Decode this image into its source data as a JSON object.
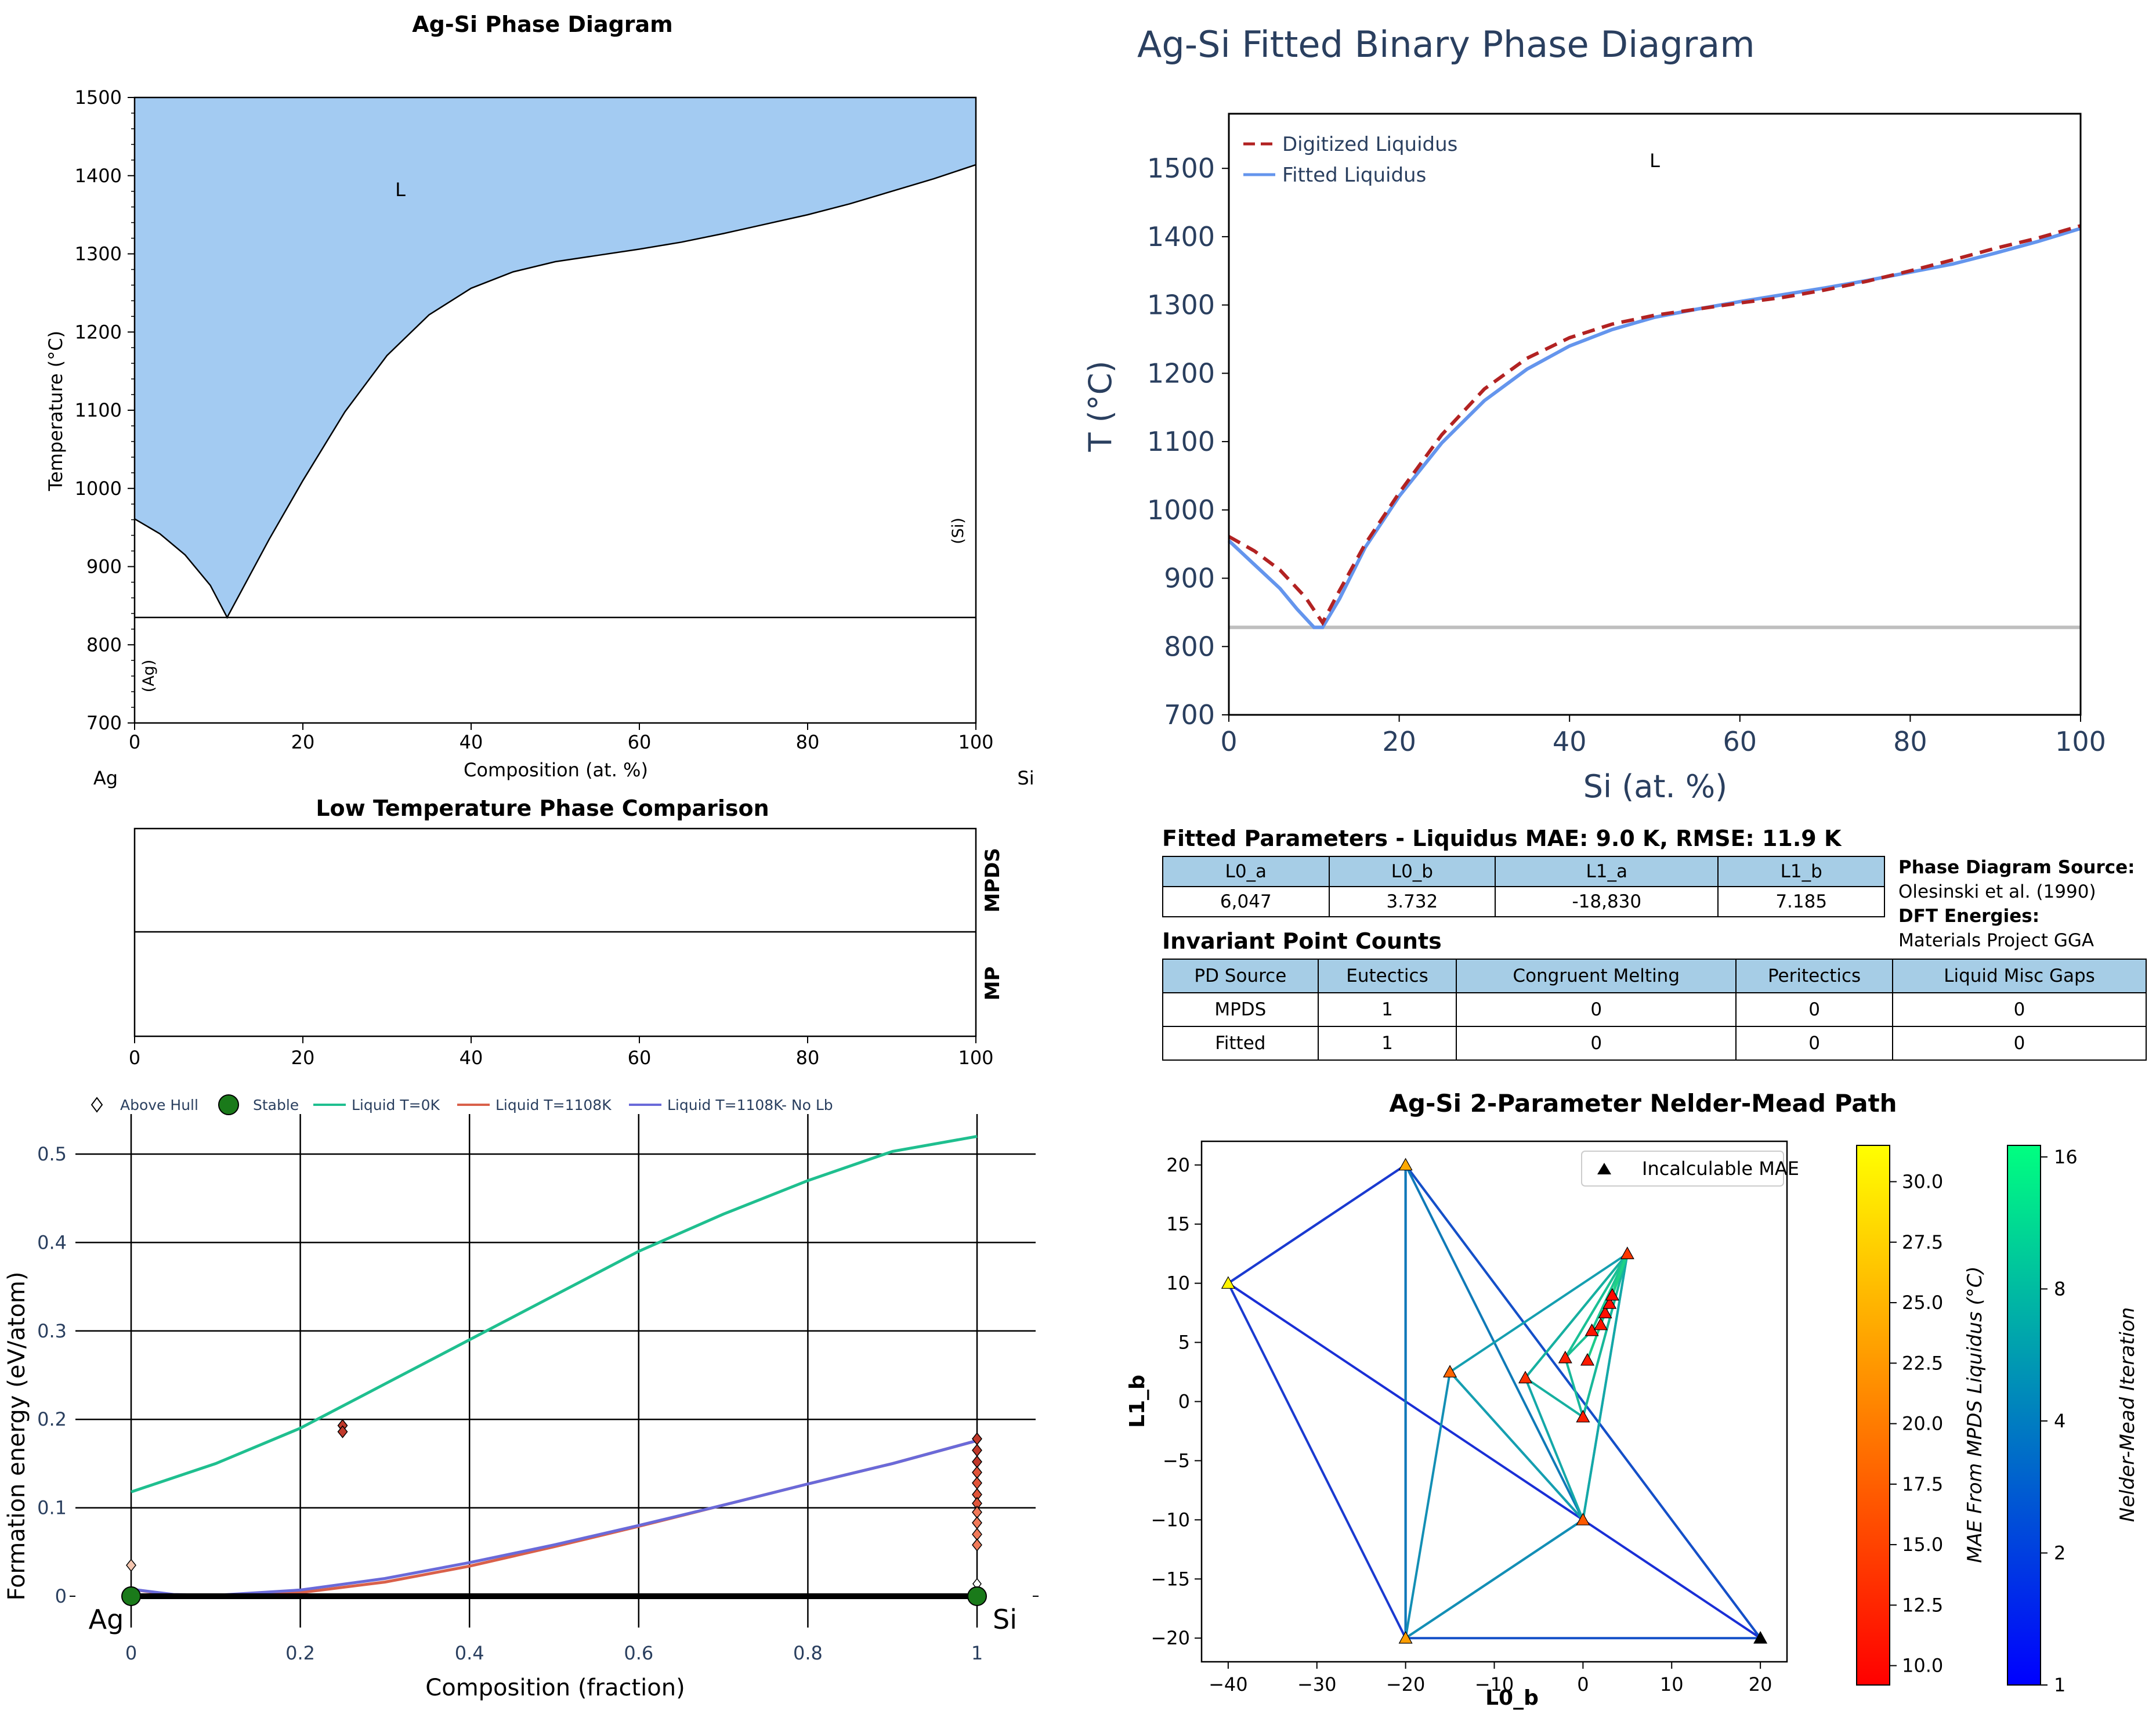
{
  "phase_diagram": {
    "title": "Ag-Si Phase Diagram",
    "xlabel": "Composition (at. %)",
    "ylabel": "Temperature (°C)",
    "left_element": "Ag",
    "right_element": "Si",
    "region_labels": {
      "liquid": "L",
      "ag_solid": "(Ag)",
      "si_solid": "(Si)"
    },
    "fill_color": "#a3cbf2"
  },
  "low_temp": {
    "title": "Low Temperature Phase Comparison",
    "row_labels": [
      "MPDS",
      "MP"
    ]
  },
  "hull": {
    "xlabel": "Composition (fraction)",
    "ylabel": "Formation energy (eV/atom)",
    "end_labels": [
      "Ag",
      "Si"
    ],
    "legend": [
      {
        "label": "Above Hull",
        "color": "#ffffff"
      },
      {
        "label": "Stable",
        "color": "#1a7a1a"
      },
      {
        "label": "Liquid T=0K",
        "color": "#1fbf8f"
      },
      {
        "label": "Liquid T=1108K",
        "color": "#d9604a"
      },
      {
        "label": "Liquid T=1108K- No Lb",
        "color": "#6a6ad9"
      }
    ]
  },
  "fitted": {
    "title": "Ag-Si Fitted Binary Phase Diagram",
    "xlabel": "Si (at. %)",
    "ylabel": "T (°C)",
    "region_label": "L",
    "legend": [
      {
        "label": "Digitized Liquidus",
        "color": "#b22222"
      },
      {
        "label": "Fitted Liquidus",
        "color": "#6495ed"
      }
    ]
  },
  "params": {
    "title": "Fitted Parameters - Liquidus MAE: 9.0 K, RMSE: 11.9 K",
    "headers": [
      "L0_a",
      "L0_b",
      "L1_a",
      "L1_b"
    ],
    "values": [
      "6,047",
      "3.732",
      "-18,830",
      "7.185"
    ],
    "source_head": "Phase Diagram Source:",
    "source_val": "Olesinski et al. (1990)",
    "dft_head": "DFT Energies:",
    "dft_val": "Materials Project GGA"
  },
  "invariants": {
    "title": "Invariant Point Counts",
    "headers": [
      "PD Source",
      "Eutectics",
      "Congruent Melting",
      "Peritectics",
      "Liquid Misc Gaps"
    ],
    "rows": [
      [
        "MPDS",
        "1",
        "0",
        "0",
        "0"
      ],
      [
        "Fitted",
        "1",
        "0",
        "0",
        "0"
      ]
    ]
  },
  "nm": {
    "title": "Ag-Si 2-Parameter Nelder-Mead Path",
    "xlabel": "L0_b",
    "ylabel": "L1_b",
    "legend": "Incalculable MAE",
    "cbar1_label": "MAE From MPDS Liquidus (°C)",
    "cbar2_label": "Nelder-Mead Iteration"
  },
  "chart_data": [
    {
      "type": "area",
      "title": "Ag-Si Phase Diagram",
      "xlabel": "Composition (at. %)",
      "ylabel": "Temperature (°C)",
      "xlim": [
        0,
        100
      ],
      "ylim": [
        700,
        1500
      ],
      "xticks": [
        0,
        20,
        40,
        60,
        80,
        100
      ],
      "yticks": [
        700,
        800,
        900,
        1000,
        1100,
        1200,
        1300,
        1400,
        1500
      ],
      "liquidus": {
        "x": [
          0,
          3,
          6,
          9,
          11,
          13,
          16,
          20,
          25,
          30,
          35,
          40,
          45,
          50,
          55,
          60,
          65,
          70,
          75,
          80,
          85,
          90,
          95,
          100
        ],
        "y": [
          961,
          942,
          915,
          876,
          835,
          875,
          935,
          1010,
          1098,
          1170,
          1222,
          1256,
          1277,
          1290,
          1298,
          1306,
          1315,
          1326,
          1338,
          1350,
          1364,
          1380,
          1396,
          1414
        ]
      },
      "eutectic_T": 835,
      "grid": false
    },
    {
      "type": "table",
      "title": "Low Temperature Phase Comparison",
      "rows": [
        "MPDS",
        "MP"
      ],
      "xlim": [
        0,
        100
      ],
      "xticks": [
        0,
        20,
        40,
        60,
        80,
        100
      ]
    },
    {
      "type": "scatter",
      "xlabel": "Composition (fraction)",
      "ylabel": "Formation energy (eV/atom)",
      "xlim": [
        -0.02,
        1.07
      ],
      "ylim": [
        -0.02,
        0.55
      ],
      "xticks": [
        "0",
        "0.2",
        "0.4",
        "0.6",
        "0.8",
        "1"
      ],
      "yticks": [
        "0",
        "0.1",
        "0.2",
        "0.3",
        "0.4",
        "0.5"
      ],
      "grid": true,
      "series": [
        {
          "name": "Liquid T=0K",
          "x": [
            0,
            0.1,
            0.2,
            0.3,
            0.4,
            0.5,
            0.6,
            0.7,
            0.8,
            0.9,
            1.0
          ],
          "y": [
            0.118,
            0.15,
            0.19,
            0.24,
            0.29,
            0.34,
            0.39,
            0.432,
            0.47,
            0.503,
            0.52
          ]
        },
        {
          "name": "Liquid T=1108K",
          "x": [
            0,
            0.05,
            0.1,
            0.2,
            0.3,
            0.4,
            0.5,
            0.6,
            0.7,
            0.8,
            0.9,
            1.0
          ],
          "y": [
            0.008,
            0.001,
            0.0,
            0.004,
            0.016,
            0.034,
            0.056,
            0.079,
            0.103,
            0.127,
            0.15,
            0.176
          ]
        },
        {
          "name": "Liquid T=1108K- No Lb",
          "x": [
            0,
            0.05,
            0.1,
            0.2,
            0.3,
            0.4,
            0.5,
            0.6,
            0.7,
            0.8,
            0.9,
            1.0
          ],
          "y": [
            0.008,
            0.002,
            0.001,
            0.007,
            0.02,
            0.038,
            0.058,
            0.08,
            0.103,
            0.127,
            0.15,
            0.176
          ]
        },
        {
          "name": "Stable",
          "x": [
            0,
            1
          ],
          "y": [
            0,
            0
          ]
        },
        {
          "name": "Above Hull",
          "x": [
            0,
            0.25,
            0.25,
            1,
            1,
            1,
            1,
            1,
            1,
            1,
            1,
            1,
            1,
            1
          ],
          "y": [
            0.035,
            0.193,
            0.186,
            0.178,
            0.165,
            0.152,
            0.14,
            0.128,
            0.115,
            0.105,
            0.095,
            0.083,
            0.07,
            0.058
          ]
        }
      ]
    },
    {
      "type": "line",
      "title": "Ag-Si Fitted Binary Phase Diagram",
      "xlabel": "Si (at. %)",
      "ylabel": "T (°C)",
      "xlim": [
        0,
        100
      ],
      "ylim": [
        700,
        1580
      ],
      "xticks": [
        0,
        20,
        40,
        60,
        80,
        100
      ],
      "yticks": [
        700,
        800,
        900,
        1000,
        1100,
        1200,
        1300,
        1400,
        1500
      ],
      "series": [
        {
          "name": "Digitized Liquidus",
          "x": [
            0,
            3,
            6,
            9,
            11,
            13,
            16,
            20,
            25,
            30,
            35,
            40,
            45,
            50,
            55,
            60,
            65,
            70,
            75,
            80,
            85,
            90,
            95,
            100
          ],
          "y": [
            961,
            940,
            912,
            872,
            835,
            882,
            950,
            1025,
            1110,
            1177,
            1222,
            1252,
            1272,
            1285,
            1294,
            1303,
            1311,
            1322,
            1335,
            1350,
            1366,
            1383,
            1398,
            1416
          ]
        },
        {
          "name": "Fitted Liquidus",
          "x": [
            0,
            3,
            6,
            8,
            10,
            11,
            13,
            16,
            20,
            25,
            30,
            35,
            40,
            45,
            50,
            55,
            60,
            65,
            70,
            75,
            80,
            85,
            90,
            95,
            100
          ],
          "y": [
            955,
            920,
            885,
            855,
            828,
            828,
            870,
            945,
            1020,
            1098,
            1160,
            1206,
            1240,
            1264,
            1282,
            1294,
            1305,
            1315,
            1325,
            1336,
            1348,
            1360,
            1376,
            1393,
            1412
          ]
        }
      ],
      "eutectic_T": 828
    },
    {
      "type": "scatter",
      "title": "Ag-Si 2-Parameter Nelder-Mead Path",
      "xlabel": "L0_b",
      "ylabel": "L1_b",
      "xlim": [
        -43,
        23
      ],
      "ylim": [
        -22,
        22
      ],
      "xticks": [
        -40,
        -30,
        -20,
        -10,
        0,
        10,
        20
      ],
      "yticks": [
        -20,
        -15,
        -10,
        -5,
        0,
        5,
        10,
        15,
        20
      ],
      "points": {
        "x": [
          -40,
          -20,
          -20,
          20,
          -15,
          0,
          5,
          -6.5,
          0,
          -2,
          1,
          2,
          0.5,
          2.5,
          3,
          3.3
        ],
        "y": [
          10,
          20,
          -20,
          -20,
          2.5,
          -10,
          12.5,
          2,
          -1.3,
          3.7,
          6,
          6.5,
          3.5,
          7.5,
          8.3,
          9
        ],
        "mae": [
          30.5,
          24,
          23,
          null,
          18,
          17,
          14,
          13.5,
          12,
          12,
          11,
          11,
          11.5,
          10.5,
          10.3,
          10.1
        ]
      },
      "colorbars": [
        {
          "label": "MAE From MPDS Liquidus (°C)",
          "range": [
            9.2,
            31.5
          ],
          "ticks": [
            10.0,
            12.5,
            15.0,
            17.5,
            20.0,
            22.5,
            25.0,
            27.5,
            30.0
          ]
        },
        {
          "label": "Nelder-Mead Iteration",
          "ticks": [
            1,
            2,
            4,
            8,
            16
          ]
        }
      ]
    }
  ]
}
